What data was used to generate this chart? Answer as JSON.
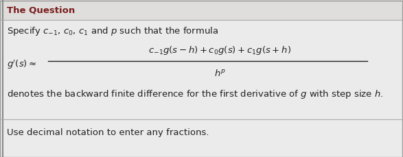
{
  "background_color": "#ebebeb",
  "border_left_color": "#999999",
  "title_text": "The Question",
  "title_color": "#7a1e1e",
  "title_fontsize": 9.5,
  "line1_text": "Specify $c_{-1}$, $c_0$, $c_1$ and $p$ such that the formula",
  "line1_fontsize": 9.5,
  "formula_lhs": "$g'(s) \\approx$",
  "formula_numerator": "$c_{-1}g(s-h) + c_0g(s) + c_1g(s+h)$",
  "formula_denominator": "$h^p$",
  "formula_fontsize": 9.5,
  "line3_text": "denotes the backward finite difference for the first derivative of $g$ with step size $h$.",
  "line3_fontsize": 9.5,
  "line4_text": "Use decimal notation to enter any fractions.",
  "line4_fontsize": 9.5,
  "text_color": "#222222",
  "separator_color": "#aaaaaa"
}
